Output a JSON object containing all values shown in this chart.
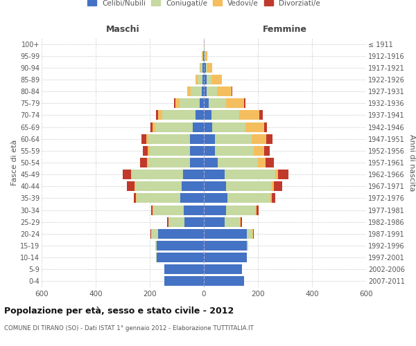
{
  "title": "Popolazione per età, sesso e stato civile - 2012",
  "subtitle": "COMUNE DI TIRANO (SO) - Dati ISTAT 1° gennaio 2012 - Elaborazione TUTTITALIA.IT",
  "ylabel_left": "Fasce di età",
  "ylabel_right": "Anni di nascita",
  "age_groups": [
    "0-4",
    "5-9",
    "10-14",
    "15-19",
    "20-24",
    "25-29",
    "30-34",
    "35-39",
    "40-44",
    "45-49",
    "50-54",
    "55-59",
    "60-64",
    "65-69",
    "70-74",
    "75-79",
    "80-84",
    "85-89",
    "90-94",
    "95-99",
    "100+"
  ],
  "birth_years": [
    "2007-2011",
    "2002-2006",
    "1997-2001",
    "1992-1996",
    "1987-1991",
    "1982-1986",
    "1977-1981",
    "1972-1976",
    "1967-1971",
    "1962-1966",
    "1957-1961",
    "1952-1956",
    "1947-1951",
    "1942-1946",
    "1937-1941",
    "1932-1936",
    "1927-1931",
    "1922-1926",
    "1917-1921",
    "1912-1916",
    "≤ 1911"
  ],
  "maschi_celibi": [
    145,
    145,
    175,
    175,
    170,
    72,
    75,
    88,
    82,
    78,
    52,
    52,
    52,
    42,
    32,
    16,
    8,
    6,
    4,
    2,
    0
  ],
  "maschi_coniugati": [
    0,
    0,
    2,
    5,
    25,
    58,
    112,
    162,
    172,
    188,
    152,
    148,
    152,
    138,
    122,
    75,
    42,
    18,
    8,
    3,
    0
  ],
  "maschi_vedovi": [
    0,
    0,
    0,
    0,
    0,
    2,
    2,
    2,
    2,
    3,
    5,
    8,
    10,
    10,
    15,
    15,
    12,
    8,
    4,
    2,
    0
  ],
  "maschi_divorziati": [
    0,
    0,
    0,
    0,
    2,
    5,
    5,
    8,
    28,
    32,
    28,
    18,
    18,
    8,
    8,
    4,
    0,
    0,
    0,
    0,
    0
  ],
  "femmine_celibi": [
    148,
    142,
    158,
    158,
    158,
    78,
    82,
    88,
    82,
    78,
    52,
    42,
    42,
    32,
    28,
    18,
    10,
    10,
    8,
    2,
    0
  ],
  "femmine_coniugate": [
    0,
    0,
    2,
    5,
    22,
    55,
    108,
    158,
    168,
    185,
    148,
    142,
    135,
    122,
    102,
    65,
    38,
    18,
    6,
    2,
    0
  ],
  "femmine_vedove": [
    0,
    0,
    0,
    2,
    2,
    4,
    5,
    6,
    8,
    12,
    28,
    38,
    55,
    68,
    75,
    65,
    55,
    38,
    18,
    8,
    2
  ],
  "femmine_divorziate": [
    0,
    0,
    0,
    0,
    2,
    5,
    8,
    12,
    32,
    38,
    32,
    22,
    22,
    12,
    12,
    6,
    2,
    0,
    0,
    0,
    0
  ],
  "color_celibi": "#4472c4",
  "color_coniugati": "#c5d9a0",
  "color_vedovi": "#f4be5e",
  "color_divorziati": "#c0392b",
  "xlim": 600,
  "background_color": "#ffffff",
  "grid_color": "#cccccc",
  "bar_height": 0.82
}
